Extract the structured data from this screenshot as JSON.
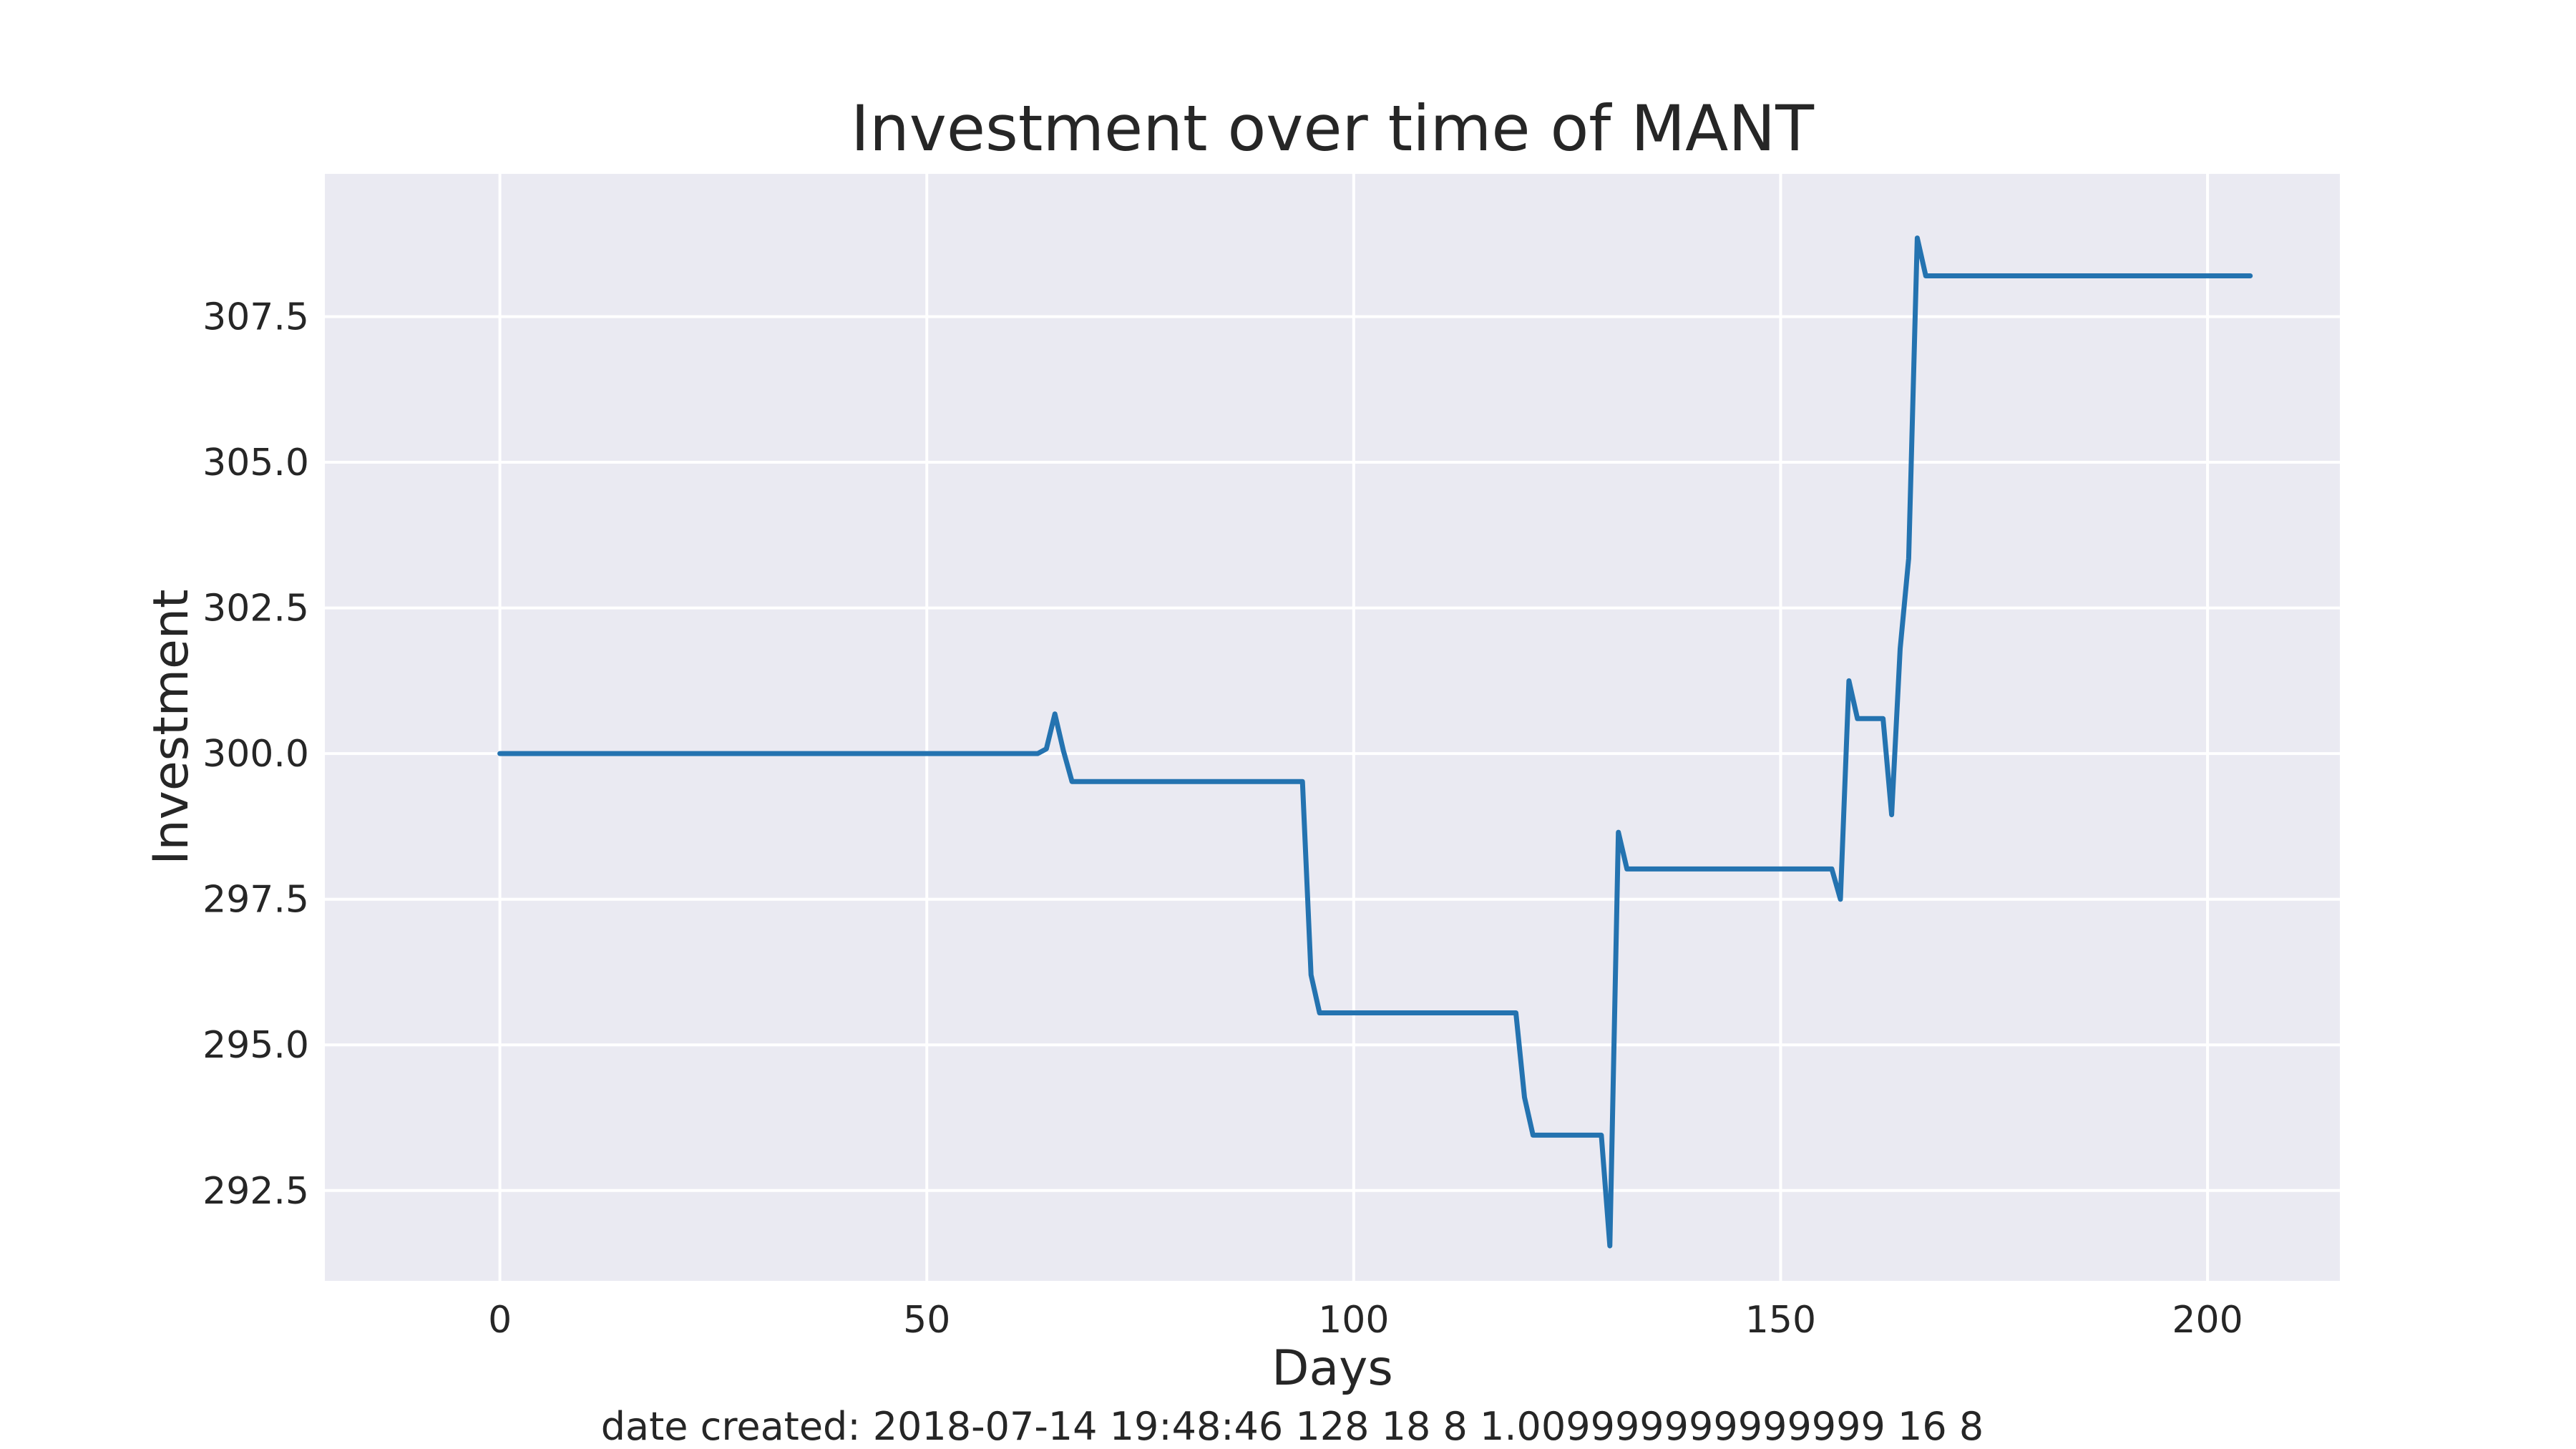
{
  "chart_data": {
    "type": "line",
    "title": "Investment over time of MANT",
    "xlabel": "Days",
    "ylabel": "Investment",
    "footer": "date created: 2018-07-14 19:48:46 128 18 8 1.009999999999999 16 8",
    "xlim": [
      -20.5,
      215.5
    ],
    "ylim": [
      290.95,
      309.95
    ],
    "xticks": [
      0,
      50,
      100,
      150,
      200
    ],
    "xtick_labels": [
      "0",
      "50",
      "100",
      "150",
      "200"
    ],
    "yticks": [
      292.5,
      295.0,
      297.5,
      300.0,
      302.5,
      305.0,
      307.5
    ],
    "ytick_labels": [
      "292.5",
      "295.0",
      "297.5",
      "300.0",
      "302.5",
      "305.0",
      "307.5"
    ],
    "grid": true,
    "background": "#eaeaf2",
    "grid_color": "#ffffff",
    "series": [
      {
        "color": "#2473b0",
        "x": [
          0,
          63,
          64,
          65,
          66,
          67,
          94,
          95,
          96,
          119,
          120,
          121,
          129,
          130,
          131,
          132,
          156,
          157,
          158,
          159,
          162,
          163,
          164,
          165,
          166,
          167,
          205
        ],
        "y": [
          300.0,
          300.0,
          300.08,
          300.68,
          300.05,
          299.52,
          299.52,
          296.2,
          295.55,
          295.55,
          294.1,
          293.45,
          293.45,
          291.55,
          298.65,
          298.02,
          298.02,
          297.5,
          301.25,
          300.6,
          300.6,
          298.95,
          301.8,
          303.35,
          308.85,
          308.2,
          308.2
        ]
      }
    ]
  }
}
